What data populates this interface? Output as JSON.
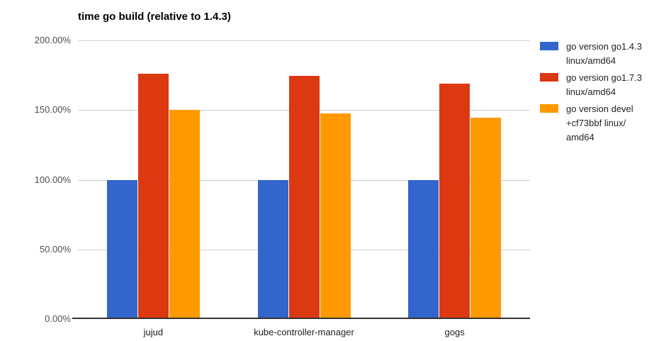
{
  "title": "time go build (relative to 1.4.3)",
  "chart_data": {
    "type": "bar",
    "title": "time go build (relative to 1.4.3)",
    "categories": [
      "jujud",
      "kube-controller-manager",
      "gogs"
    ],
    "series": [
      {
        "name": "go version go1.4.3\nlinux/amd64",
        "color": "#3366cc",
        "values": [
          100,
          100,
          100
        ]
      },
      {
        "name": "go version go1.7.3\nlinux/amd64",
        "color": "#dc3912",
        "values": [
          176,
          174.5,
          169
        ]
      },
      {
        "name": "go version devel\n+cf73bbf linux/\namd64",
        "color": "#ff9900",
        "values": [
          150,
          147.5,
          144.5
        ]
      }
    ],
    "xlabel": "",
    "ylabel": "",
    "ylim": [
      0,
      200
    ],
    "yticks": [
      {
        "value": 0,
        "label": "0.00%"
      },
      {
        "value": 50,
        "label": "50.00%"
      },
      {
        "value": 100,
        "label": "100.00%"
      },
      {
        "value": 150,
        "label": "150.00%"
      },
      {
        "value": 200,
        "label": "200.00%"
      }
    ],
    "grid": true,
    "legend_position": "right"
  },
  "colors": {
    "background": "#ffffff",
    "gridline": "#cccccc",
    "axis_line": "#333333",
    "axis_text": "#4d4d4d",
    "category_text": "#222222",
    "legend_text": "#222222",
    "title_text": "#000000"
  }
}
